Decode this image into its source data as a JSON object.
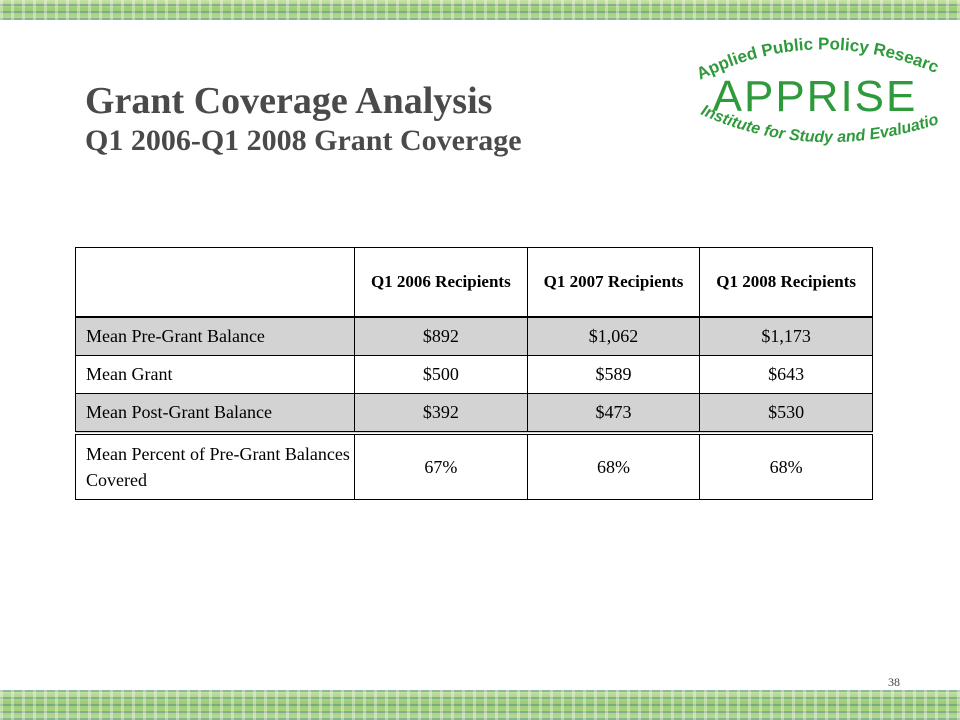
{
  "slide": {
    "title_line1": "Grant Coverage Analysis",
    "title_line2": "Q1 2006-Q1 2008 Grant Coverage",
    "page_number": "38"
  },
  "logo": {
    "top_text": "Applied Public Policy Research",
    "main_text": "APPRISE",
    "bottom_text": "Institute for Study and Evaluation",
    "color": "#2e9a3c"
  },
  "table": {
    "headers": [
      "",
      "Q1 2006 Recipients",
      "Q1 2007 Recipients",
      "Q1 2008 Recipients"
    ],
    "rows": [
      {
        "label": "Mean Pre-Grant Balance",
        "values": [
          "$892",
          "$1,062",
          "$1,173"
        ],
        "shaded": true
      },
      {
        "label": "Mean Grant",
        "values": [
          "$500",
          "$589",
          "$643"
        ],
        "shaded": false
      },
      {
        "label": "Mean Post-Grant Balance",
        "values": [
          "$392",
          "$473",
          "$530"
        ],
        "shaded": true
      },
      {
        "label": "Mean Percent of Pre-Grant Balances Covered",
        "values": [
          "67%",
          "68%",
          "68%"
        ],
        "shaded": false
      }
    ]
  },
  "colors": {
    "title": "#4a4a4a",
    "shaded_row": "#d3d3d3",
    "banner_green": "#9ecb72"
  }
}
